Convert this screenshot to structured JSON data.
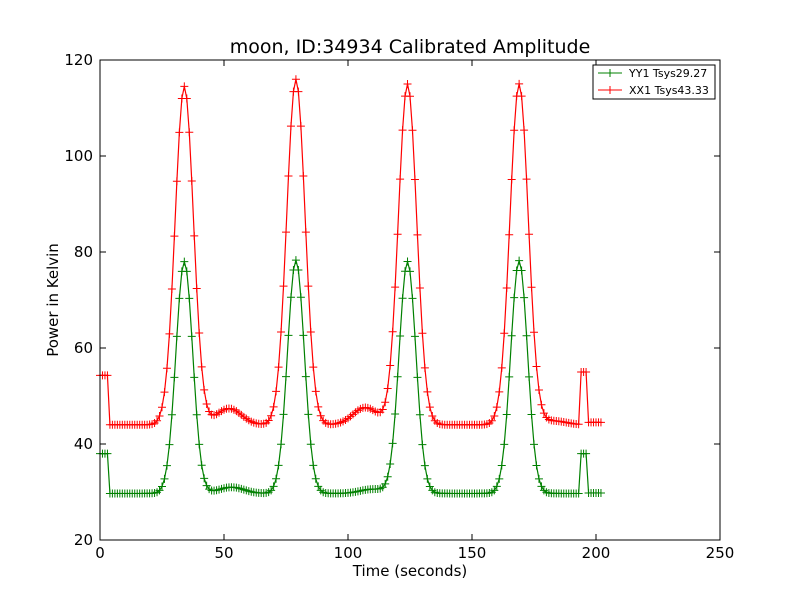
{
  "chart_data": {
    "type": "line",
    "title": "moon, ID:34934 Calibrated Amplitude",
    "xlabel": "Time (seconds)",
    "ylabel": "Power in Kelvin",
    "xlim": [
      0,
      250
    ],
    "ylim": [
      20,
      120
    ],
    "xticks": [
      0,
      50,
      100,
      150,
      200,
      250
    ],
    "yticks": [
      20,
      40,
      60,
      80,
      100,
      120
    ],
    "grid": false,
    "legend_position": "top-right",
    "time_range": [
      0,
      202
    ],
    "sample_step": 1,
    "series": [
      {
        "name": "YY1 Tsys29.27",
        "label": "YY1 Tsys29.27",
        "color": "#008000",
        "marker": "+",
        "baseline": 29.7,
        "peaks": [
          {
            "t": 34,
            "value": 78
          },
          {
            "t": 79,
            "value": 78.3
          },
          {
            "t": 124,
            "value": 78
          },
          {
            "t": 169,
            "value": 78.2
          }
        ],
        "peak_width": 3.4,
        "bumps": [
          {
            "t": 53,
            "value": 1.3
          },
          {
            "t": 110,
            "value": 0.9
          }
        ],
        "segments": [
          {
            "from": 0,
            "to": 4,
            "value": 38
          },
          {
            "from": 194,
            "to": 197,
            "value": 38
          },
          {
            "from": 197,
            "to": 202,
            "value": 29.8
          }
        ]
      },
      {
        "name": "XX1 Tsys43.33",
        "label": "XX1 Tsys43.33",
        "color": "#ff0000",
        "marker": "+",
        "baseline": 44,
        "peaks": [
          {
            "t": 34,
            "value": 114.5
          },
          {
            "t": 79,
            "value": 116
          },
          {
            "t": 124,
            "value": 115
          },
          {
            "t": 169,
            "value": 115
          }
        ],
        "peak_width": 3.7,
        "bumps": [
          {
            "t": 52,
            "value": 3.4
          },
          {
            "t": 107,
            "value": 3.6
          },
          {
            "t": 183,
            "value": 0.8
          }
        ],
        "segments": [
          {
            "from": 0,
            "to": 4,
            "value": 54.3
          },
          {
            "from": 194,
            "to": 197,
            "value": 55
          },
          {
            "from": 197,
            "to": 202,
            "value": 44.5
          }
        ]
      }
    ]
  }
}
